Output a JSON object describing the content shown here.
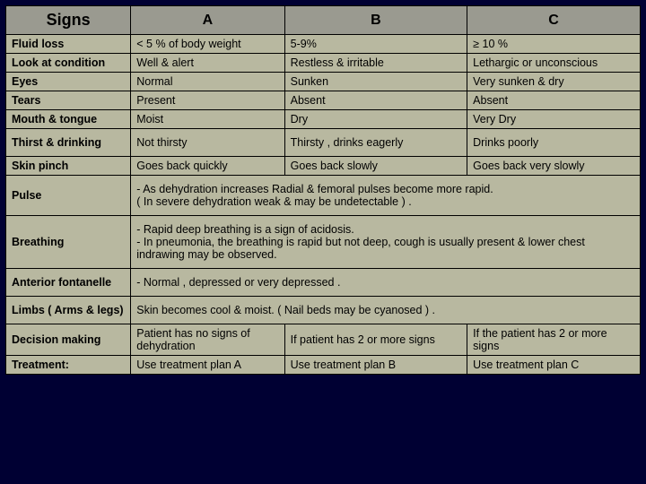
{
  "headers": {
    "signs": "Signs",
    "a": "A",
    "b": "B",
    "c": "C"
  },
  "rows": {
    "fluid_loss": {
      "sign": "Fluid loss",
      "a": "< 5 % of body weight",
      "b": "5-9%",
      "c": "≥ 10 %"
    },
    "look": {
      "sign": "Look at condition",
      "a": "Well & alert",
      "b": "Restless & irritable",
      "c": "Lethargic or unconscious"
    },
    "eyes": {
      "sign": "Eyes",
      "a": "Normal",
      "b": "Sunken",
      "c": "Very sunken & dry"
    },
    "tears": {
      "sign": "Tears",
      "a": "Present",
      "b": "Absent",
      "c": "Absent"
    },
    "mouth": {
      "sign": "Mouth & tongue",
      "a": "Moist",
      "b": "Dry",
      "c": "Very Dry"
    },
    "thirst": {
      "sign": "Thirst & drinking",
      "a": "Not thirsty",
      "b": "Thirsty , drinks eagerly",
      "c": "Drinks poorly"
    },
    "skin": {
      "sign": "Skin pinch",
      "a": "Goes back quickly",
      "b": "Goes back slowly",
      "c": "Goes back very slowly"
    },
    "pulse": {
      "sign": "Pulse",
      "merged": "- As dehydration  increases Radial & femoral pulses become more rapid.\n    (  In severe dehydration weak & may be undetectable ) ."
    },
    "breathing": {
      "sign": "Breathing",
      "merged": "- Rapid deep breathing is a  sign of acidosis.\n  - In pneumonia, the breathing is rapid but not deep, cough is usually present & lower chest indrawing may be observed."
    },
    "fontanelle": {
      "sign": "Anterior fontanelle",
      "merged": "  -     Normal  , depressed or very depressed ."
    },
    "limbs": {
      "sign": "Limbs ( Arms & legs)",
      "merged": "Skin becomes cool & moist. ( Nail beds may be cyanosed ) ."
    },
    "decision": {
      "sign": "Decision making",
      "a": "Patient has no signs of dehydration",
      "b": "If patient has 2 or more signs",
      "c": "If the patient has 2 or more signs"
    },
    "treatment": {
      "sign": "Treatment:",
      "a": " Use treatment plan A",
      "b": "Use treatment plan B",
      "c": " Use treatment plan C"
    }
  },
  "colors": {
    "page_bg": "#000033",
    "table_bg": "#b8b8a0",
    "header_bg": "#9a9a90",
    "border": "#000000",
    "text": "#000000"
  }
}
